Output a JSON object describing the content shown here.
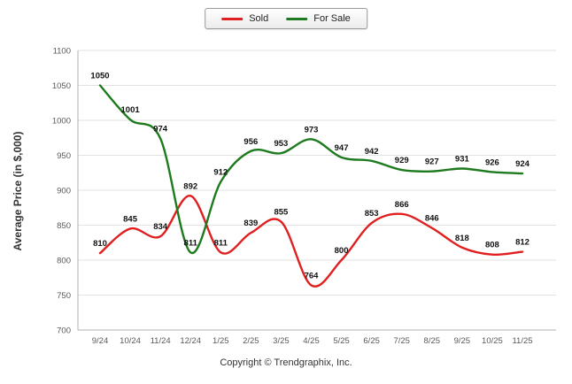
{
  "chart_data": {
    "type": "line",
    "categories": [
      "9/24",
      "10/24",
      "11/24",
      "12/24",
      "1/25",
      "2/25",
      "3/25",
      "4/25",
      "5/25",
      "6/25",
      "7/25",
      "8/25",
      "9/25",
      "10/25",
      "11/25"
    ],
    "series": [
      {
        "name": "Sold",
        "color": "#e02020",
        "values": [
          810,
          845,
          834,
          892,
          811,
          839,
          855,
          764,
          800,
          853,
          866,
          846,
          818,
          808,
          812
        ]
      },
      {
        "name": "For Sale",
        "color": "#1e7a1e",
        "values": [
          1050,
          1001,
          974,
          811,
          912,
          956,
          953,
          973,
          947,
          942,
          929,
          927,
          931,
          926,
          924
        ]
      }
    ],
    "title": "",
    "xlabel": "",
    "ylabel": "Average Price (in $,000)",
    "ylim": [
      700,
      1100
    ],
    "ytick_step": 50,
    "grid": true,
    "legend_position": "top"
  },
  "footer": {
    "copyright": "Copyright © Trendgraphix, Inc."
  },
  "colors": {
    "grid": "#e2e2e2",
    "axis": "#b0b0b0",
    "axis_text": "#595959",
    "label_text": "#111111"
  }
}
